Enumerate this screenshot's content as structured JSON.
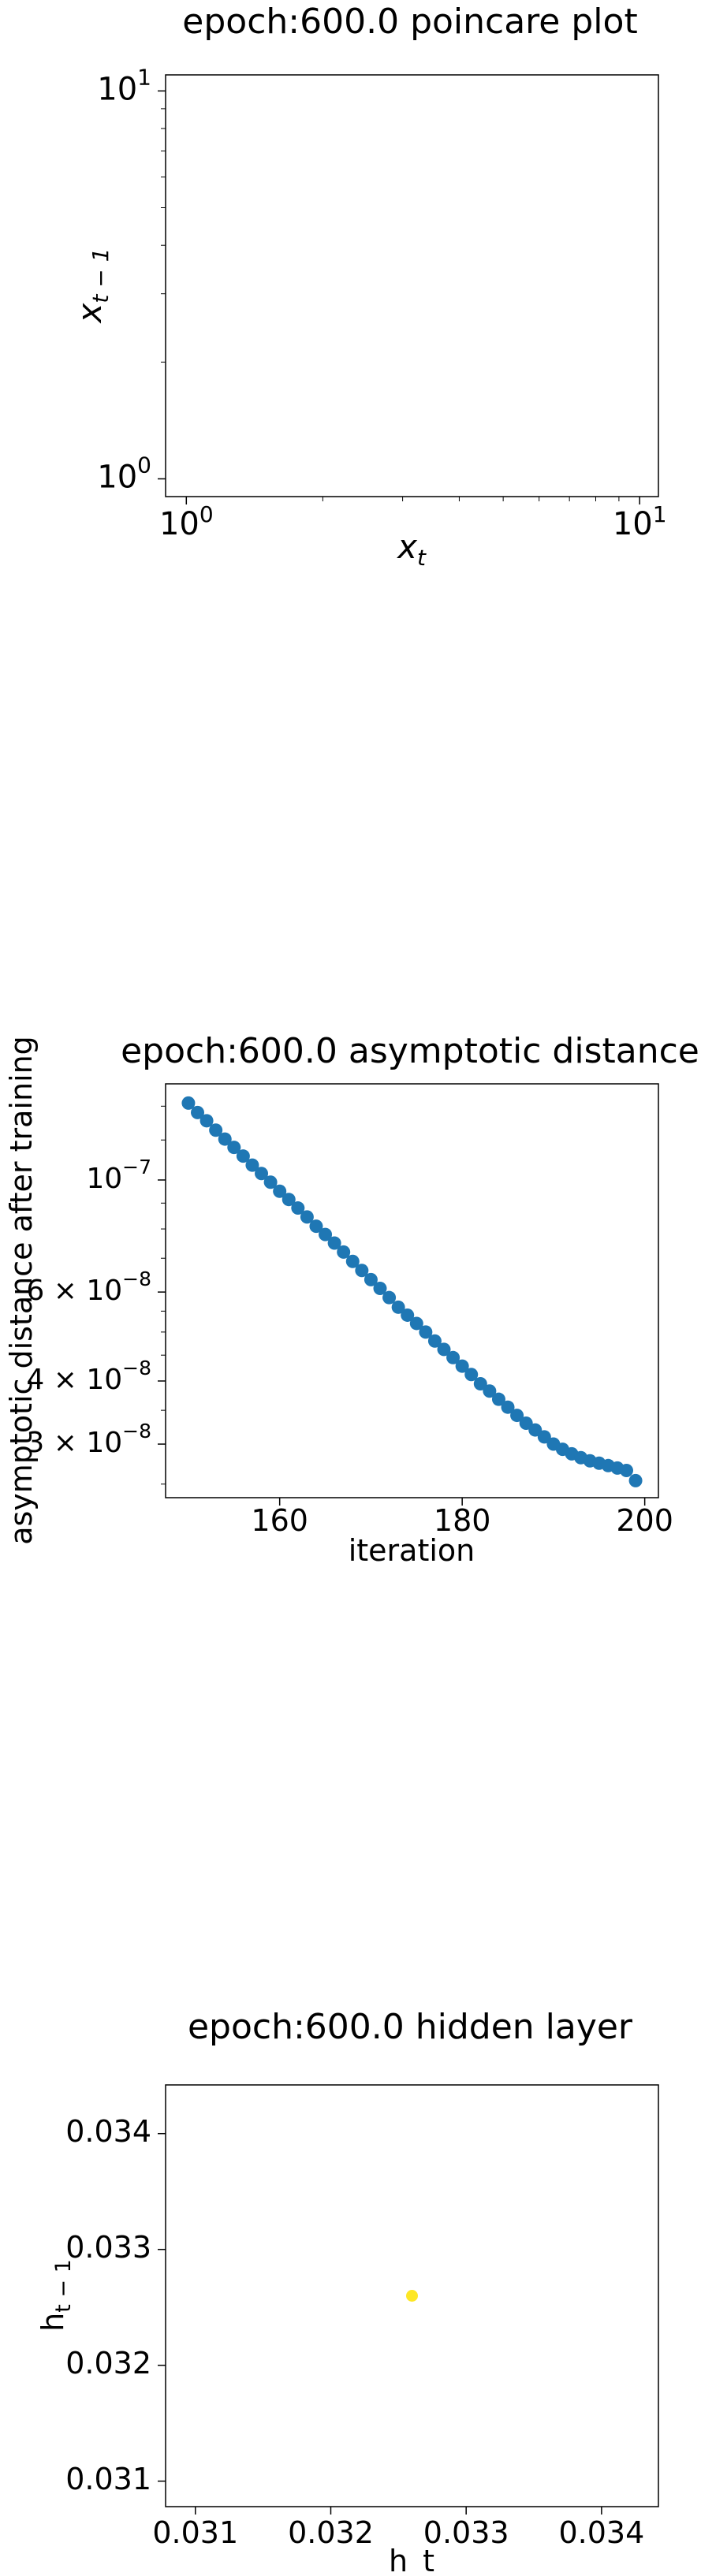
{
  "chart_data": [
    {
      "type": "scatter",
      "title": "epoch:600.0 poincare plot",
      "xlabel": "x",
      "xlabel_sub": "t",
      "ylabel": "x",
      "ylabel_sub": "t − 1",
      "xscale": "log",
      "yscale": "log",
      "xlim": [
        0.9,
        11
      ],
      "ylim": [
        0.9,
        11
      ],
      "x_ticks": [
        {
          "value": 1,
          "base": "10",
          "exp": "0"
        },
        {
          "value": 10,
          "base": "10",
          "exp": "1"
        }
      ],
      "y_ticks": [
        {
          "value": 1,
          "base": "10",
          "exp": "0"
        },
        {
          "value": 10,
          "base": "10",
          "exp": "1"
        }
      ],
      "points": []
    },
    {
      "type": "scatter",
      "title": "epoch:600.0 asymptotic distance",
      "xlabel": "iteration",
      "ylabel": "asymptotic distance after training",
      "xscale": "linear",
      "yscale": "log",
      "xlim": [
        147.5,
        201.5
      ],
      "ylim": [
        2.35e-08,
        1.55e-07
      ],
      "marker_color": "#1f77b4",
      "x_ticks": [
        {
          "value": 160,
          "label": "160"
        },
        {
          "value": 180,
          "label": "180"
        },
        {
          "value": 200,
          "label": "200"
        }
      ],
      "y_ticks": [
        {
          "value": 1e-07,
          "base": "10",
          "exp": "−7",
          "mantissa": ""
        },
        {
          "value": 6e-08,
          "base": "10",
          "exp": "−8",
          "mantissa": "6"
        },
        {
          "value": 4e-08,
          "base": "10",
          "exp": "−8",
          "mantissa": "4"
        },
        {
          "value": 3e-08,
          "base": "10",
          "exp": "−8",
          "mantissa": "3"
        }
      ],
      "x": [
        150,
        151,
        152,
        153,
        154,
        155,
        156,
        157,
        158,
        159,
        160,
        161,
        162,
        163,
        164,
        165,
        166,
        167,
        168,
        169,
        170,
        171,
        172,
        173,
        174,
        175,
        176,
        177,
        178,
        179,
        180,
        181,
        182,
        183,
        184,
        185,
        186,
        187,
        188,
        189,
        190,
        191,
        192,
        193,
        194,
        195,
        196,
        197,
        198,
        199
      ],
      "y": [
        1.42e-07,
        1.36e-07,
        1.31e-07,
        1.255e-07,
        1.205e-07,
        1.16e-07,
        1.115e-07,
        1.07e-07,
        1.03e-07,
        9.9e-08,
        9.5e-08,
        9.15e-08,
        8.8e-08,
        8.45e-08,
        8.1e-08,
        7.8e-08,
        7.5e-08,
        7.2e-08,
        6.9e-08,
        6.62e-08,
        6.35e-08,
        6.1e-08,
        5.85e-08,
        5.6e-08,
        5.4e-08,
        5.2e-08,
        5e-08,
        4.8e-08,
        4.62e-08,
        4.45e-08,
        4.28e-08,
        4.12e-08,
        3.95e-08,
        3.82e-08,
        3.68e-08,
        3.55e-08,
        3.42e-08,
        3.3e-08,
        3.2e-08,
        3.1e-08,
        3e-08,
        2.93e-08,
        2.87e-08,
        2.82e-08,
        2.78e-08,
        2.75e-08,
        2.72e-08,
        2.69e-08,
        2.66e-08,
        2.54e-08
      ]
    },
    {
      "type": "scatter",
      "title": "epoch:600.0 hidden layer",
      "xlabel": "h_t",
      "ylabel": "h",
      "ylabel_sub": "t − 1",
      "xscale": "linear",
      "yscale": "linear",
      "xlim": [
        0.03078,
        0.03442
      ],
      "ylim": [
        0.03078,
        0.03442
      ],
      "marker_color": "#fde725",
      "x_ticks": [
        {
          "value": 0.031,
          "label": "0.031"
        },
        {
          "value": 0.032,
          "label": "0.032"
        },
        {
          "value": 0.033,
          "label": "0.033"
        },
        {
          "value": 0.034,
          "label": "0.034"
        }
      ],
      "y_ticks": [
        {
          "value": 0.031,
          "label": "0.031"
        },
        {
          "value": 0.032,
          "label": "0.032"
        },
        {
          "value": 0.033,
          "label": "0.033"
        },
        {
          "value": 0.034,
          "label": "0.034"
        }
      ],
      "x": [
        0.0326
      ],
      "y": [
        0.0326
      ]
    }
  ]
}
